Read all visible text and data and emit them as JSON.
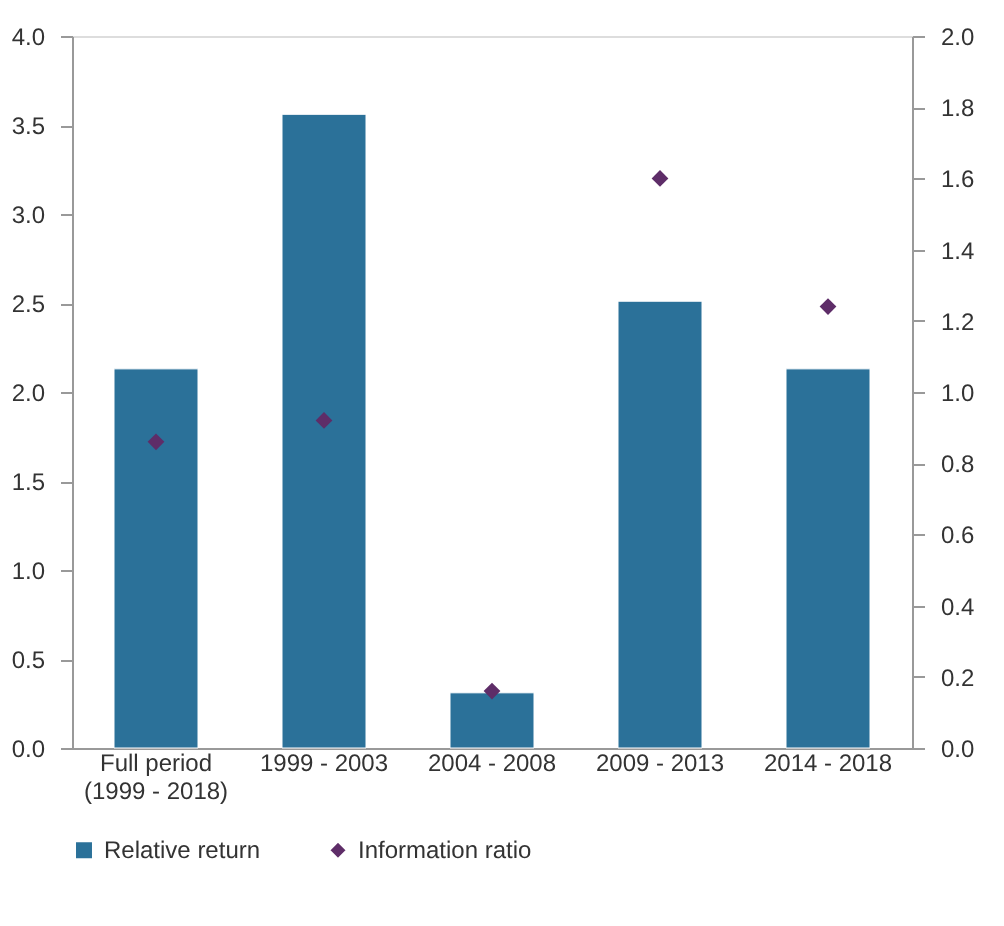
{
  "chart_data": {
    "type": "bar",
    "categories": [
      "Full period (1999 - 2018)",
      "1999 - 2003",
      "2004 - 2008",
      "2009 - 2013",
      "2014 - 2018"
    ],
    "series": [
      {
        "name": "Relative return",
        "color": "#2b7199",
        "values": [
          2.13,
          3.56,
          0.31,
          2.51,
          2.13
        ]
      },
      {
        "name": "Information ratio",
        "type": "scatter",
        "axis": "y2",
        "marker": "diamond",
        "color": "#5e2d68",
        "values": [
          0.86,
          0.92,
          0.16,
          1.6,
          1.24
        ]
      }
    ],
    "ylim": [
      0,
      4
    ],
    "yticks": [
      {
        "value": 0,
        "label": "0.0"
      },
      0.5,
      {
        "value": 1,
        "label": "1.0"
      },
      1.5,
      {
        "value": 2,
        "label": "2.0"
      },
      2.5,
      {
        "value": 3,
        "label": "3.0"
      },
      3.5,
      {
        "value": 4,
        "label": "4.0"
      }
    ],
    "y2lim": [
      0,
      2
    ],
    "y2ticks": [
      {
        "value": 0,
        "label": "0.0"
      },
      0.2,
      0.4,
      0.6,
      0.8,
      {
        "value": 1,
        "label": "1.0"
      },
      1.2,
      1.4,
      1.6,
      1.8,
      {
        "value": 2,
        "label": "2.0"
      }
    ],
    "grid": false,
    "legend": "bottom"
  }
}
